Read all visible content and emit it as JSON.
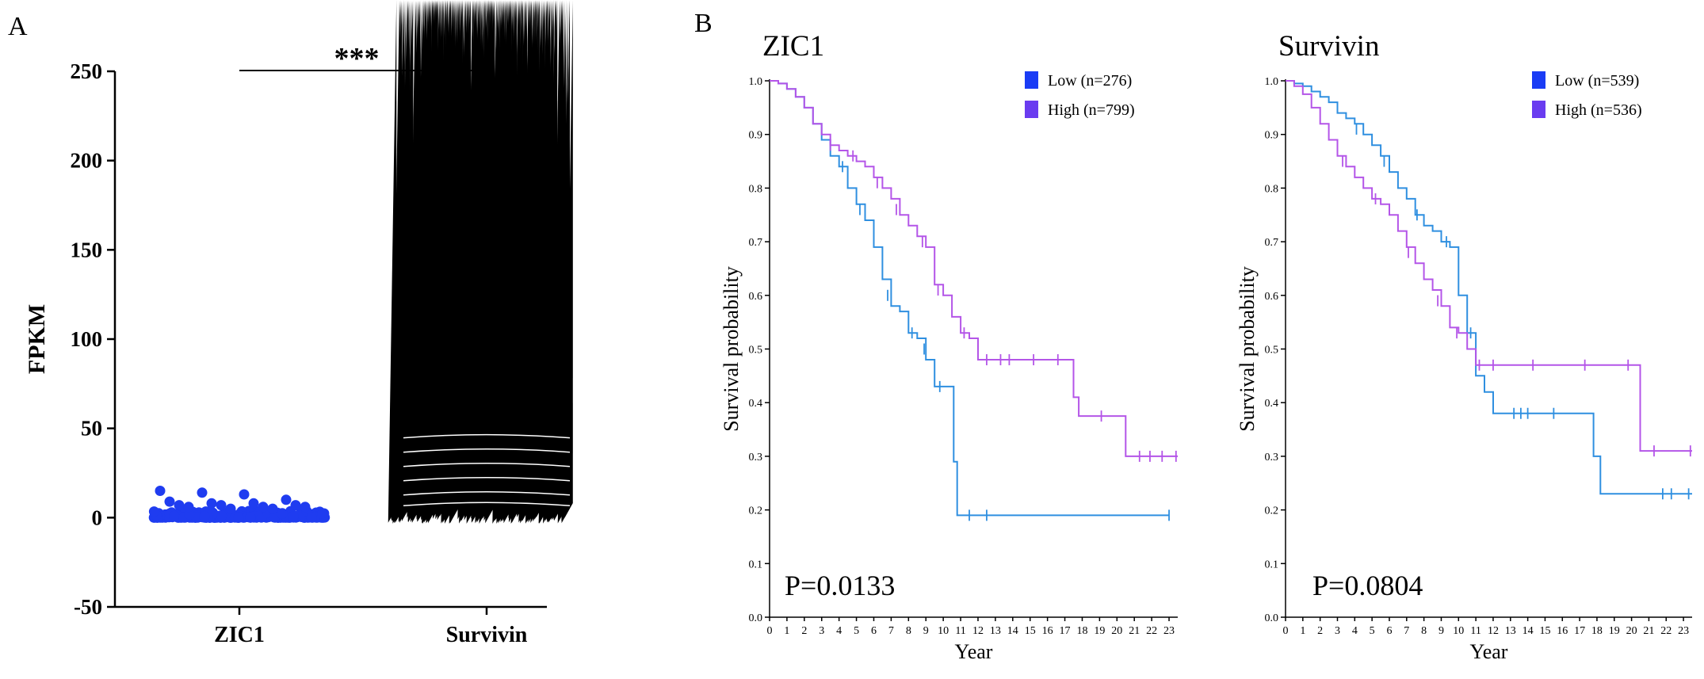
{
  "panel_labels": {
    "a": "A",
    "b": "B"
  },
  "significance": "***",
  "colors": {
    "blue": "#1f3cf0",
    "black": "#000000",
    "km_low": "#2f8fe0",
    "km_high": "#b455e8",
    "legend_low": "#1a3cf5",
    "legend_high": "#6a3cf0"
  },
  "chart_data": [
    {
      "type": "scatter",
      "panel": "A",
      "ylabel": "FPKM",
      "ylim": [
        -50,
        250
      ],
      "yticks": [
        "250",
        "200",
        "150",
        "100",
        "50",
        "0",
        "-50"
      ],
      "categories": [
        "ZIC1",
        "Survivin"
      ],
      "series": [
        {
          "name": "ZIC1",
          "marker": "circle",
          "color": "#1f3cf0",
          "values_summary": "most values between 0 and 10; max about 15",
          "outliers": [
            15,
            14,
            13,
            10,
            9,
            8,
            8,
            7,
            7,
            7,
            6,
            6,
            6,
            5,
            5
          ]
        },
        {
          "name": "Survivin",
          "marker": "triangle",
          "color": "#000000",
          "values_summary": "dense band from about 0 to 55",
          "outliers": [
            217,
            136,
            91,
            90,
            77,
            67,
            63,
            63,
            62,
            62,
            62,
            62,
            61,
            56,
            55
          ]
        }
      ]
    },
    {
      "type": "line",
      "panel": "B1",
      "title": "ZIC1",
      "xlabel": "Year",
      "ylabel": "Survival probability",
      "xlim": [
        0,
        23.5
      ],
      "ylim": [
        0,
        1.0
      ],
      "xticks": [
        "0",
        "1",
        "2",
        "3",
        "4",
        "5",
        "6",
        "7",
        "8",
        "9",
        "10",
        "11",
        "12",
        "13",
        "14",
        "15",
        "16",
        "17",
        "18",
        "19",
        "20",
        "21",
        "22",
        "23"
      ],
      "yticks": [
        "0.0",
        "0.1",
        "0.2",
        "0.3",
        "0.4",
        "0.5",
        "0.6",
        "0.7",
        "0.8",
        "0.9",
        "1.0"
      ],
      "legend": [
        "Low (n=276)",
        "High (n=799)"
      ],
      "pvalue": "P=0.0133",
      "series": [
        {
          "name": "Low (n=276)",
          "color": "#2f8fe0",
          "points": [
            [
              0,
              1.0
            ],
            [
              0.5,
              0.995
            ],
            [
              1,
              0.985
            ],
            [
              1.5,
              0.97
            ],
            [
              2,
              0.95
            ],
            [
              2.5,
              0.92
            ],
            [
              3,
              0.89
            ],
            [
              3.5,
              0.86
            ],
            [
              4,
              0.84
            ],
            [
              4.5,
              0.8
            ],
            [
              5,
              0.77
            ],
            [
              5.5,
              0.74
            ],
            [
              6,
              0.69
            ],
            [
              6.5,
              0.63
            ],
            [
              7,
              0.58
            ],
            [
              7.5,
              0.57
            ],
            [
              8,
              0.53
            ],
            [
              8.5,
              0.52
            ],
            [
              9,
              0.48
            ],
            [
              9.5,
              0.43
            ],
            [
              10.5,
              0.43
            ],
            [
              10.6,
              0.29
            ],
            [
              10.8,
              0.19
            ],
            [
              23,
              0.19
            ]
          ],
          "censored": [
            [
              4.2,
              0.84
            ],
            [
              5.2,
              0.76
            ],
            [
              6.8,
              0.6
            ],
            [
              8.2,
              0.53
            ],
            [
              8.9,
              0.5
            ],
            [
              9.8,
              0.43
            ],
            [
              11.5,
              0.19
            ],
            [
              12.5,
              0.19
            ],
            [
              23,
              0.19
            ]
          ]
        },
        {
          "name": "High (n=799)",
          "color": "#b455e8",
          "points": [
            [
              0,
              1.0
            ],
            [
              0.5,
              0.995
            ],
            [
              1,
              0.985
            ],
            [
              1.5,
              0.97
            ],
            [
              2,
              0.95
            ],
            [
              2.5,
              0.92
            ],
            [
              3,
              0.9
            ],
            [
              3.5,
              0.88
            ],
            [
              4,
              0.87
            ],
            [
              4.5,
              0.86
            ],
            [
              5,
              0.85
            ],
            [
              5.5,
              0.84
            ],
            [
              6,
              0.82
            ],
            [
              6.5,
              0.8
            ],
            [
              7,
              0.78
            ],
            [
              7.5,
              0.75
            ],
            [
              8,
              0.73
            ],
            [
              8.5,
              0.71
            ],
            [
              9,
              0.69
            ],
            [
              9.5,
              0.62
            ],
            [
              10,
              0.6
            ],
            [
              10.5,
              0.56
            ],
            [
              11,
              0.53
            ],
            [
              11.5,
              0.52
            ],
            [
              12,
              0.48
            ],
            [
              16.8,
              0.48
            ],
            [
              17.5,
              0.41
            ],
            [
              17.8,
              0.375
            ],
            [
              20.2,
              0.375
            ],
            [
              20.5,
              0.3
            ],
            [
              23.5,
              0.3
            ]
          ],
          "censored": [
            [
              3.5,
              0.88
            ],
            [
              4.8,
              0.86
            ],
            [
              6.2,
              0.81
            ],
            [
              7.3,
              0.76
            ],
            [
              8.8,
              0.7
            ],
            [
              9.7,
              0.61
            ],
            [
              11.2,
              0.53
            ],
            [
              12.5,
              0.48
            ],
            [
              13.3,
              0.48
            ],
            [
              13.8,
              0.48
            ],
            [
              15.2,
              0.48
            ],
            [
              16.6,
              0.48
            ],
            [
              19.1,
              0.375
            ],
            [
              21.3,
              0.3
            ],
            [
              21.9,
              0.3
            ],
            [
              22.6,
              0.3
            ],
            [
              23.4,
              0.3
            ]
          ]
        }
      ]
    },
    {
      "type": "line",
      "panel": "B2",
      "title": "Survivin",
      "xlabel": "Year",
      "ylabel": "Survival probability",
      "xlim": [
        0,
        23.5
      ],
      "ylim": [
        0,
        1.0
      ],
      "xticks": [
        "0",
        "1",
        "2",
        "3",
        "4",
        "5",
        "6",
        "7",
        "8",
        "9",
        "10",
        "11",
        "12",
        "13",
        "14",
        "15",
        "16",
        "17",
        "18",
        "19",
        "20",
        "21",
        "22",
        "23"
      ],
      "yticks": [
        "0.0",
        "0.1",
        "0.2",
        "0.3",
        "0.4",
        "0.5",
        "0.6",
        "0.7",
        "0.8",
        "0.9",
        "1.0"
      ],
      "legend": [
        "Low (n=539)",
        "High (n=536)"
      ],
      "pvalue": "P=0.0804",
      "series": [
        {
          "name": "Low (n=539)",
          "color": "#2f8fe0",
          "points": [
            [
              0,
              1.0
            ],
            [
              0.5,
              0.995
            ],
            [
              1,
              0.99
            ],
            [
              1.5,
              0.98
            ],
            [
              2,
              0.97
            ],
            [
              2.5,
              0.96
            ],
            [
              3,
              0.94
            ],
            [
              3.5,
              0.93
            ],
            [
              4,
              0.92
            ],
            [
              4.5,
              0.9
            ],
            [
              5,
              0.88
            ],
            [
              5.5,
              0.86
            ],
            [
              6,
              0.83
            ],
            [
              6.5,
              0.8
            ],
            [
              7,
              0.78
            ],
            [
              7.5,
              0.75
            ],
            [
              8,
              0.73
            ],
            [
              8.5,
              0.72
            ],
            [
              9,
              0.7
            ],
            [
              9.5,
              0.69
            ],
            [
              10,
              0.6
            ],
            [
              10.5,
              0.53
            ],
            [
              11,
              0.45
            ],
            [
              11.5,
              0.42
            ],
            [
              12,
              0.38
            ],
            [
              17.5,
              0.38
            ],
            [
              17.8,
              0.3
            ],
            [
              18.2,
              0.23
            ],
            [
              23.5,
              0.23
            ]
          ],
          "censored": [
            [
              4.1,
              0.91
            ],
            [
              5.7,
              0.85
            ],
            [
              7.6,
              0.75
            ],
            [
              9.3,
              0.7
            ],
            [
              10.7,
              0.53
            ],
            [
              13.2,
              0.38
            ],
            [
              13.6,
              0.38
            ],
            [
              14.0,
              0.38
            ],
            [
              15.5,
              0.38
            ],
            [
              21.8,
              0.23
            ],
            [
              22.3,
              0.23
            ],
            [
              23.3,
              0.23
            ]
          ]
        },
        {
          "name": "High (n=536)",
          "color": "#b455e8",
          "points": [
            [
              0,
              1.0
            ],
            [
              0.5,
              0.99
            ],
            [
              1,
              0.975
            ],
            [
              1.5,
              0.95
            ],
            [
              2,
              0.92
            ],
            [
              2.5,
              0.89
            ],
            [
              3,
              0.86
            ],
            [
              3.5,
              0.84
            ],
            [
              4,
              0.82
            ],
            [
              4.5,
              0.8
            ],
            [
              5,
              0.78
            ],
            [
              5.5,
              0.77
            ],
            [
              6,
              0.75
            ],
            [
              6.5,
              0.72
            ],
            [
              7,
              0.69
            ],
            [
              7.5,
              0.66
            ],
            [
              8,
              0.63
            ],
            [
              8.5,
              0.61
            ],
            [
              9,
              0.58
            ],
            [
              9.5,
              0.54
            ],
            [
              10,
              0.53
            ],
            [
              10.5,
              0.5
            ],
            [
              11,
              0.47
            ],
            [
              20.2,
              0.47
            ],
            [
              20.5,
              0.31
            ],
            [
              23.5,
              0.31
            ]
          ],
          "censored": [
            [
              3.3,
              0.85
            ],
            [
              5.2,
              0.78
            ],
            [
              7.1,
              0.68
            ],
            [
              8.8,
              0.59
            ],
            [
              9.9,
              0.53
            ],
            [
              11.2,
              0.47
            ],
            [
              12.0,
              0.47
            ],
            [
              14.3,
              0.47
            ],
            [
              17.3,
              0.47
            ],
            [
              19.8,
              0.47
            ],
            [
              21.3,
              0.31
            ],
            [
              23.4,
              0.31
            ]
          ]
        }
      ]
    }
  ]
}
